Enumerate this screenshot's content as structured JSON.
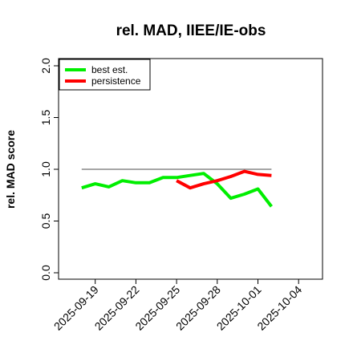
{
  "chart_data": {
    "type": "line",
    "title": "rel. MAD, IIEE/IE-obs",
    "ylabel": "rel. MAD score",
    "xlabel": "",
    "ylim": [
      0.0,
      2.0
    ],
    "yticks": [
      "0.0",
      "0.5",
      "1.0",
      "1.5",
      "2.0"
    ],
    "xlim": [
      "2025-09-16",
      "2025-10-05"
    ],
    "xticks": [
      "2025-09-19",
      "2025-09-22",
      "2025-09-25",
      "2025-09-28",
      "2025-10-01",
      "2025-10-04"
    ],
    "legend_position": "top-left",
    "reference_line": {
      "y": 1.0,
      "x_start": "2025-09-18",
      "x_end": "2025-10-02",
      "color": "#707070"
    },
    "series": [
      {
        "name": "best est.",
        "color": "#00ee00",
        "x": [
          "2025-09-18",
          "2025-09-19",
          "2025-09-20",
          "2025-09-21",
          "2025-09-22",
          "2025-09-23",
          "2025-09-24",
          "2025-09-25",
          "2025-09-26",
          "2025-09-27",
          "2025-09-28",
          "2025-09-29",
          "2025-09-30",
          "2025-10-01",
          "2025-10-02"
        ],
        "values": [
          0.82,
          0.86,
          0.83,
          0.89,
          0.87,
          0.87,
          0.92,
          0.92,
          0.94,
          0.96,
          0.86,
          0.72,
          0.76,
          0.81,
          0.64
        ]
      },
      {
        "name": "persistence",
        "color": "#ff0000",
        "x": [
          "2025-09-25",
          "2025-09-26",
          "2025-09-27",
          "2025-09-28",
          "2025-09-29",
          "2025-09-30",
          "2025-10-01",
          "2025-10-02"
        ],
        "values": [
          0.89,
          0.82,
          0.86,
          0.89,
          0.93,
          0.98,
          0.95,
          0.94
        ]
      }
    ]
  }
}
